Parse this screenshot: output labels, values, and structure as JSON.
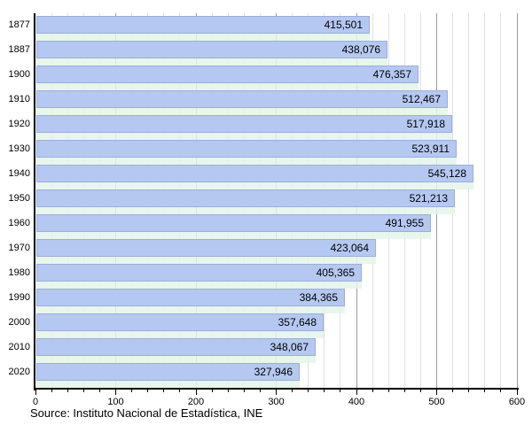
{
  "chart_data": {
    "type": "bar",
    "orientation": "horizontal",
    "title": "",
    "xlabel": "",
    "ylabel": "",
    "categories": [
      "1877",
      "1887",
      "1900",
      "1910",
      "1920",
      "1930",
      "1940",
      "1950",
      "1960",
      "1970",
      "1980",
      "1990",
      "2000",
      "2010",
      "2020"
    ],
    "values": [
      415501,
      438076,
      476357,
      512467,
      517918,
      523911,
      545128,
      521213,
      491955,
      423064,
      405365,
      384365,
      357648,
      348067,
      327946
    ],
    "value_labels": [
      "415,501",
      "438,076",
      "476,357",
      "512,467",
      "517,918",
      "523,911",
      "545,128",
      "521,213",
      "491,955",
      "423,064",
      "405,365",
      "384,365",
      "357,648",
      "348,067",
      "327,946"
    ],
    "xlim": [
      0,
      600
    ],
    "x_major_ticks": [
      0,
      100,
      200,
      300,
      400,
      500,
      600
    ],
    "x_tick_labels": [
      "0",
      "100",
      "200",
      "300",
      "400",
      "500",
      "600"
    ],
    "x_minor_step": 20,
    "axis_unit_per_value": 1000,
    "grid": "vertical",
    "legend": "none"
  },
  "footer": {
    "source": "Source: Instituto Nacional de Estadística, INE"
  },
  "colors": {
    "bar_fill": "#b5c8f1",
    "bar_border": "#9cadde",
    "row_underlay": "#e4f5e7",
    "grid_minor": "#e0e0e0",
    "grid_major": "#9a9a9a",
    "axis": "#000000",
    "text": "#000000",
    "background": "#ffffff"
  }
}
